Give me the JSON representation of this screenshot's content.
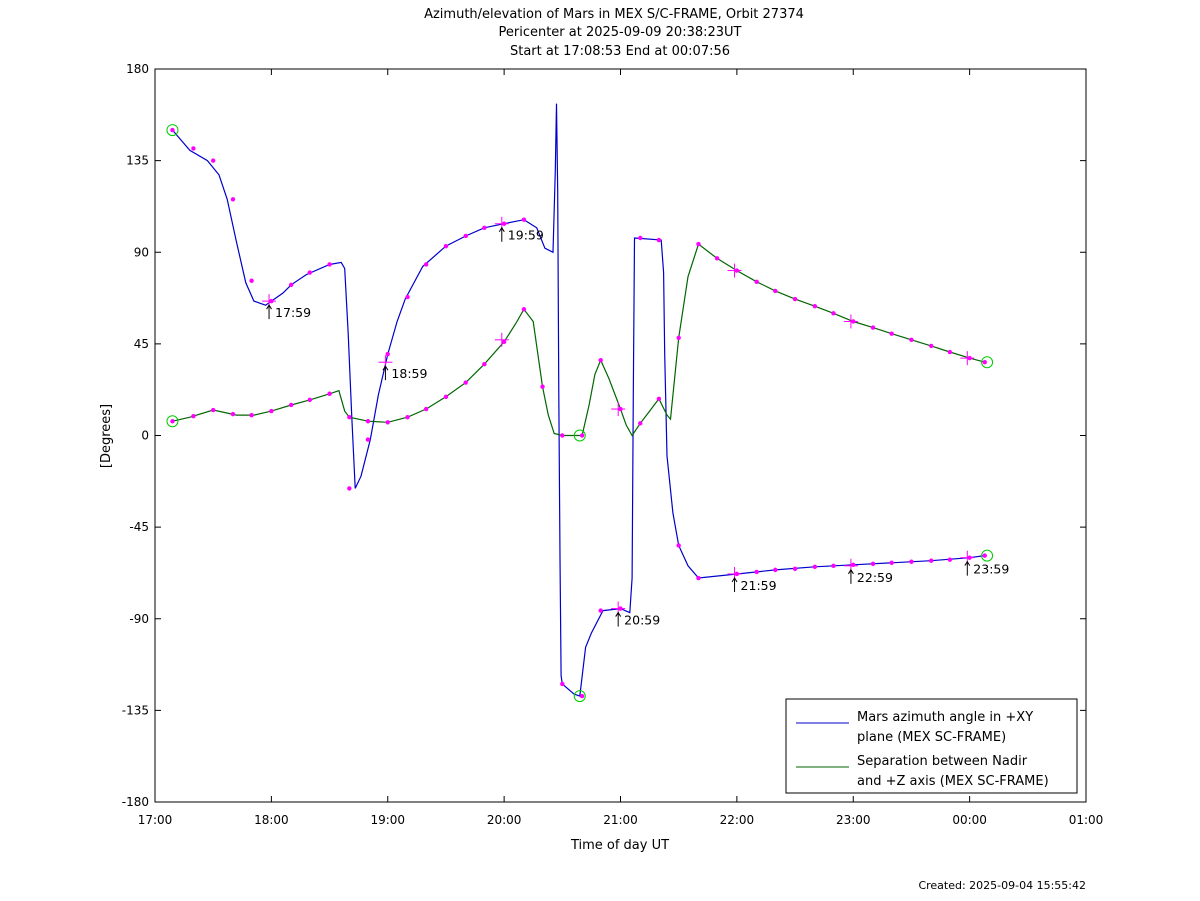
{
  "chart_data": {
    "type": "line",
    "title": "Azimuth/elevation of Mars in MEX S/C-FRAME,  Orbit 27374",
    "subtitle": "Pericenter at 2025-09-09 20:38:23UT",
    "subtitle2": "Start at 17:08:53 End at 00:07:56",
    "xlabel": "Time of day UT",
    "ylabel": "[Degrees]",
    "xlim": [
      17.0,
      25.0
    ],
    "ylim": [
      -180,
      180
    ],
    "x_ticks": [
      {
        "v": 17,
        "label": "17:00"
      },
      {
        "v": 18,
        "label": "18:00"
      },
      {
        "v": 19,
        "label": "19:00"
      },
      {
        "v": 20,
        "label": "20:00"
      },
      {
        "v": 21,
        "label": "21:00"
      },
      {
        "v": 22,
        "label": "22:00"
      },
      {
        "v": 23,
        "label": "23:00"
      },
      {
        "v": 24,
        "label": "00:00"
      },
      {
        "v": 25,
        "label": "01:00"
      }
    ],
    "y_ticks": [
      {
        "v": 180,
        "label": "180"
      },
      {
        "v": 135,
        "label": "135"
      },
      {
        "v": 90,
        "label": "90"
      },
      {
        "v": 45,
        "label": "45"
      },
      {
        "v": 0,
        "label": "0"
      },
      {
        "v": -45,
        "label": "-45"
      },
      {
        "v": -90,
        "label": "-90"
      },
      {
        "v": -135,
        "label": "-135"
      },
      {
        "v": -180,
        "label": "-180"
      }
    ],
    "legend_position": "bottom-right",
    "series": [
      {
        "name": "Mars azimuth angle in +XY plane (MEX SC-FRAME)",
        "legend_lines": [
          "Mars azimuth angle in +XY",
          "plane (MEX SC-FRAME)"
        ],
        "color": "#0000cc",
        "points": [
          [
            17.15,
            150
          ],
          [
            17.3,
            140
          ],
          [
            17.45,
            135
          ],
          [
            17.55,
            128
          ],
          [
            17.62,
            116
          ],
          [
            17.7,
            95
          ],
          [
            17.78,
            75
          ],
          [
            17.85,
            66
          ],
          [
            17.95,
            64
          ],
          [
            18.0,
            66
          ],
          [
            18.1,
            70
          ],
          [
            18.17,
            74
          ],
          [
            18.3,
            79
          ],
          [
            18.5,
            84
          ],
          [
            18.6,
            85
          ],
          [
            18.63,
            82
          ],
          [
            18.66,
            50
          ],
          [
            18.69,
            10
          ],
          [
            18.72,
            -26
          ],
          [
            18.77,
            -20
          ],
          [
            18.85,
            -2
          ],
          [
            18.92,
            20
          ],
          [
            19.0,
            40
          ],
          [
            19.08,
            56
          ],
          [
            19.15,
            67
          ],
          [
            19.3,
            83
          ],
          [
            19.5,
            93
          ],
          [
            19.67,
            98
          ],
          [
            19.83,
            102
          ],
          [
            20.0,
            104
          ],
          [
            20.17,
            106
          ],
          [
            20.28,
            102
          ],
          [
            20.35,
            92
          ],
          [
            20.42,
            90
          ],
          [
            20.44,
            130
          ],
          [
            20.45,
            163
          ],
          [
            20.46,
            120
          ],
          [
            20.47,
            20
          ],
          [
            20.48,
            -60
          ],
          [
            20.49,
            -118
          ],
          [
            20.5,
            -122
          ],
          [
            20.6,
            -127
          ],
          [
            20.65,
            -128
          ],
          [
            20.7,
            -104
          ],
          [
            20.75,
            -97
          ],
          [
            20.85,
            -86
          ],
          [
            21.0,
            -85
          ],
          [
            21.08,
            -87
          ],
          [
            21.1,
            -70
          ],
          [
            21.11,
            20
          ],
          [
            21.12,
            97
          ],
          [
            21.35,
            96
          ],
          [
            21.37,
            80
          ],
          [
            21.38,
            40
          ],
          [
            21.4,
            -10
          ],
          [
            21.45,
            -38
          ],
          [
            21.5,
            -54
          ],
          [
            21.58,
            -64
          ],
          [
            21.67,
            -70
          ],
          [
            22.0,
            -68
          ],
          [
            22.33,
            -66
          ],
          [
            22.67,
            -64.5
          ],
          [
            23.0,
            -63.5
          ],
          [
            23.33,
            -62.5
          ],
          [
            23.67,
            -61.5
          ],
          [
            24.0,
            -60
          ],
          [
            24.13,
            -59
          ]
        ],
        "dots": [
          [
            17.15,
            150
          ],
          [
            17.33,
            141
          ],
          [
            17.5,
            135
          ],
          [
            17.67,
            116
          ],
          [
            17.83,
            76
          ],
          [
            18.0,
            66
          ],
          [
            18.17,
            74
          ],
          [
            18.33,
            80
          ],
          [
            18.5,
            84
          ],
          [
            18.67,
            -26
          ],
          [
            18.83,
            -2
          ],
          [
            19.0,
            40
          ],
          [
            19.17,
            68
          ],
          [
            19.33,
            84
          ],
          [
            19.5,
            93
          ],
          [
            19.67,
            98
          ],
          [
            19.83,
            102
          ],
          [
            20.0,
            104
          ],
          [
            20.17,
            106
          ],
          [
            20.5,
            -122
          ],
          [
            20.67,
            -128
          ],
          [
            20.83,
            -86
          ],
          [
            21.0,
            -85
          ],
          [
            21.17,
            97
          ],
          [
            21.33,
            96
          ],
          [
            21.5,
            -54
          ],
          [
            21.67,
            -70
          ],
          [
            22.0,
            -68
          ],
          [
            22.17,
            -67
          ],
          [
            22.33,
            -66
          ],
          [
            22.5,
            -65.5
          ],
          [
            22.67,
            -64.5
          ],
          [
            22.83,
            -64
          ],
          [
            23.0,
            -63.5
          ],
          [
            23.17,
            -63
          ],
          [
            23.33,
            -62.5
          ],
          [
            23.5,
            -62
          ],
          [
            23.67,
            -61.5
          ],
          [
            23.83,
            -61
          ],
          [
            24.0,
            -60
          ],
          [
            24.13,
            -59
          ]
        ]
      },
      {
        "name": "Separation between Nadir and +Z axis (MEX SC-FRAME)",
        "legend_lines": [
          "Separation between Nadir",
          "and +Z axis (MEX SC-FRAME)"
        ],
        "color": "#006600",
        "points": [
          [
            17.15,
            7
          ],
          [
            17.3,
            9
          ],
          [
            17.5,
            12.5
          ],
          [
            17.7,
            10
          ],
          [
            17.85,
            10
          ],
          [
            18.0,
            12
          ],
          [
            18.17,
            15
          ],
          [
            18.33,
            17.5
          ],
          [
            18.5,
            20.5
          ],
          [
            18.58,
            22
          ],
          [
            18.63,
            12
          ],
          [
            18.67,
            9
          ],
          [
            18.83,
            7
          ],
          [
            19.0,
            6.5
          ],
          [
            19.17,
            9
          ],
          [
            19.33,
            13
          ],
          [
            19.5,
            19
          ],
          [
            19.67,
            26
          ],
          [
            19.83,
            35
          ],
          [
            20.0,
            46
          ],
          [
            20.1,
            55
          ],
          [
            20.17,
            62
          ],
          [
            20.25,
            56
          ],
          [
            20.33,
            24
          ],
          [
            20.38,
            10
          ],
          [
            20.43,
            1
          ],
          [
            20.5,
            0
          ],
          [
            20.67,
            0
          ],
          [
            20.73,
            15
          ],
          [
            20.78,
            30
          ],
          [
            20.83,
            37
          ],
          [
            20.9,
            28
          ],
          [
            21.0,
            13
          ],
          [
            21.05,
            5
          ],
          [
            21.1,
            0
          ],
          [
            21.17,
            6
          ],
          [
            21.25,
            12
          ],
          [
            21.33,
            18
          ],
          [
            21.4,
            10
          ],
          [
            21.43,
            8
          ],
          [
            21.5,
            48
          ],
          [
            21.58,
            78
          ],
          [
            21.67,
            94
          ],
          [
            21.83,
            87
          ],
          [
            22.0,
            81
          ],
          [
            22.17,
            75.5
          ],
          [
            22.33,
            71
          ],
          [
            22.5,
            67
          ],
          [
            22.67,
            63.5
          ],
          [
            22.83,
            60
          ],
          [
            23.0,
            56
          ],
          [
            23.17,
            53
          ],
          [
            23.33,
            50
          ],
          [
            23.5,
            47
          ],
          [
            23.67,
            44
          ],
          [
            23.83,
            41
          ],
          [
            24.0,
            38
          ],
          [
            24.13,
            36
          ]
        ],
        "dots": [
          [
            17.15,
            7
          ],
          [
            17.33,
            9.5
          ],
          [
            17.5,
            12.5
          ],
          [
            17.67,
            10.5
          ],
          [
            17.83,
            10
          ],
          [
            18.0,
            12
          ],
          [
            18.17,
            15
          ],
          [
            18.33,
            17.5
          ],
          [
            18.5,
            20.5
          ],
          [
            18.67,
            9
          ],
          [
            18.83,
            7
          ],
          [
            19.0,
            6.5
          ],
          [
            19.17,
            9
          ],
          [
            19.33,
            13
          ],
          [
            19.5,
            19
          ],
          [
            19.67,
            26
          ],
          [
            19.83,
            35
          ],
          [
            20.0,
            46
          ],
          [
            20.17,
            62
          ],
          [
            20.33,
            24
          ],
          [
            20.5,
            0
          ],
          [
            20.67,
            0
          ],
          [
            20.83,
            37
          ],
          [
            21.0,
            13
          ],
          [
            21.17,
            6
          ],
          [
            21.33,
            18
          ],
          [
            21.5,
            48
          ],
          [
            21.67,
            94
          ],
          [
            21.83,
            87
          ],
          [
            22.0,
            81
          ],
          [
            22.17,
            75.5
          ],
          [
            22.33,
            71
          ],
          [
            22.5,
            67
          ],
          [
            22.67,
            63.5
          ],
          [
            22.83,
            60
          ],
          [
            23.0,
            56
          ],
          [
            23.17,
            53
          ],
          [
            23.33,
            50
          ],
          [
            23.5,
            47
          ],
          [
            23.67,
            44
          ],
          [
            23.83,
            41
          ],
          [
            24.0,
            38
          ],
          [
            24.13,
            36
          ]
        ]
      }
    ],
    "hour_marks": [
      [
        17.98,
        66
      ],
      [
        18.98,
        36
      ],
      [
        19.98,
        47
      ],
      [
        19.98,
        104
      ],
      [
        20.98,
        -85
      ],
      [
        20.98,
        13
      ],
      [
        21.98,
        -68
      ],
      [
        21.98,
        81
      ],
      [
        22.98,
        -64
      ],
      [
        22.98,
        56
      ],
      [
        23.98,
        -60
      ],
      [
        23.98,
        38
      ]
    ],
    "circle_marks": [
      [
        17.15,
        150
      ],
      [
        17.15,
        7
      ],
      [
        20.65,
        -128
      ],
      [
        20.65,
        0
      ],
      [
        24.15,
        -59
      ],
      [
        24.15,
        36
      ]
    ],
    "annotations": [
      {
        "x": 17.98,
        "y": 66,
        "label": "17:59"
      },
      {
        "x": 18.98,
        "y": 36,
        "label": "18:59"
      },
      {
        "x": 19.98,
        "y": 104,
        "label": "19:59"
      },
      {
        "x": 20.98,
        "y": -85,
        "label": "20:59"
      },
      {
        "x": 21.98,
        "y": -68,
        "label": "21:59"
      },
      {
        "x": 22.98,
        "y": -64,
        "label": "22:59"
      },
      {
        "x": 23.98,
        "y": -60,
        "label": "23:59"
      }
    ],
    "marker_colors": {
      "dot": "#ff00ff",
      "circle": "#00cc00"
    }
  },
  "footer": {
    "created": "Created: 2025-09-04 15:55:42"
  }
}
